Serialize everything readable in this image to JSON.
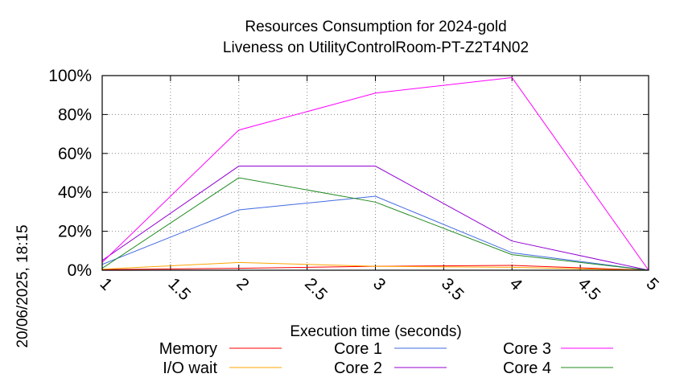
{
  "chart_data": {
    "type": "line",
    "title": [
      "Resources Consumption for 2024-gold",
      "Liveness on UtilityControlRoom-PT-Z2T4N02"
    ],
    "xlabel": "Execution time (seconds)",
    "ylabel": "",
    "side_label": "20/06/2025, 18:15",
    "xlim": [
      1,
      5
    ],
    "ylim": [
      0,
      100
    ],
    "x_ticks": [
      "1",
      "1.5",
      "2",
      "2.5",
      "3",
      "3.5",
      "4",
      "4.5",
      "5"
    ],
    "y_ticks": [
      "0%",
      "20%",
      "40%",
      "60%",
      "80%",
      "100%"
    ],
    "grid": true,
    "legend_position": "bottom",
    "x": [
      1,
      2,
      3,
      4,
      5
    ],
    "series": [
      {
        "name": "Memory",
        "color": "#ff0000",
        "values": [
          0.3,
          1.0,
          2.0,
          2.5,
          0
        ]
      },
      {
        "name": "I/O wait",
        "color": "#ffa500",
        "values": [
          0.5,
          4.0,
          2.0,
          1.5,
          0
        ]
      },
      {
        "name": "Core 1",
        "color": "#4169e1",
        "values": [
          3,
          31,
          38,
          9,
          0
        ]
      },
      {
        "name": "Core 2",
        "color": "#9400d3",
        "values": [
          5,
          53.5,
          53.5,
          15,
          0
        ]
      },
      {
        "name": "Core 3",
        "color": "#ff00ff",
        "values": [
          4,
          72,
          91,
          99,
          0
        ]
      },
      {
        "name": "Core 4",
        "color": "#228b22",
        "values": [
          1,
          47.5,
          35,
          8,
          0
        ]
      }
    ]
  }
}
